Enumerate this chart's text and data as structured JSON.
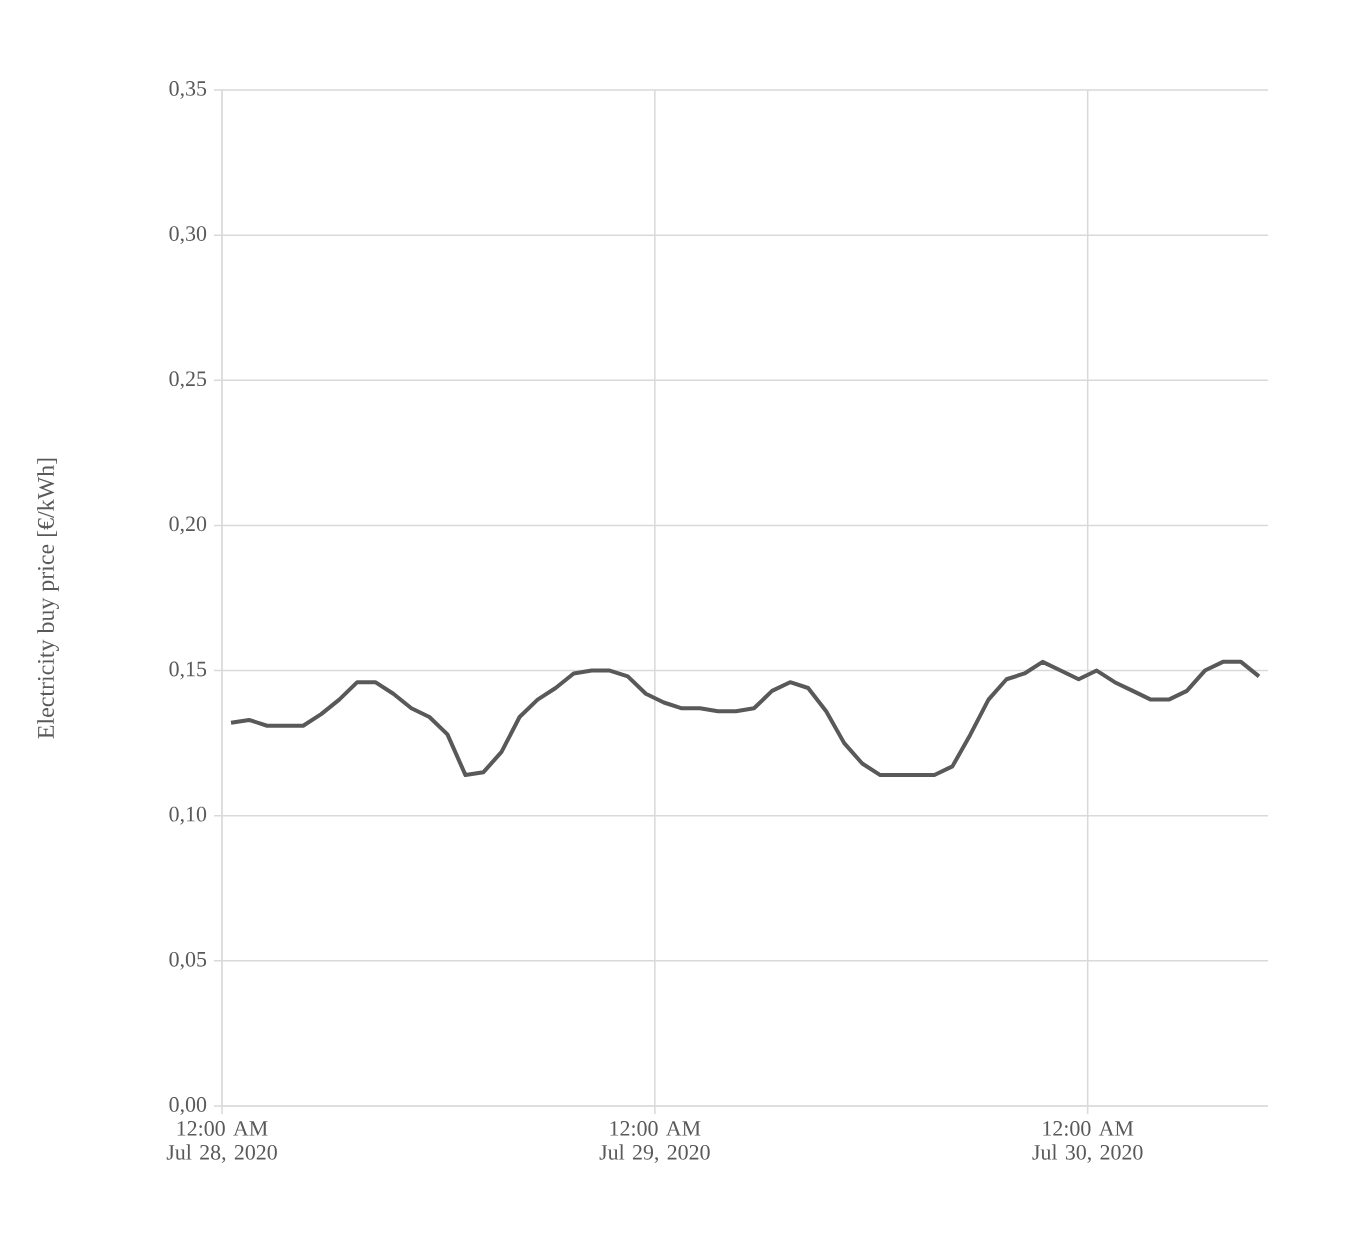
{
  "chart_data": {
    "type": "line",
    "ylabel": "Electricity buy price [€/kWh]",
    "x": [
      "2020-07-28T00:30",
      "2020-07-28T01:30",
      "2020-07-28T02:30",
      "2020-07-28T03:30",
      "2020-07-28T04:30",
      "2020-07-28T05:30",
      "2020-07-28T06:30",
      "2020-07-28T07:30",
      "2020-07-28T08:30",
      "2020-07-28T09:30",
      "2020-07-28T10:30",
      "2020-07-28T11:30",
      "2020-07-28T12:30",
      "2020-07-28T13:30",
      "2020-07-28T14:30",
      "2020-07-28T15:30",
      "2020-07-28T16:30",
      "2020-07-28T17:30",
      "2020-07-28T18:30",
      "2020-07-28T19:30",
      "2020-07-28T20:30",
      "2020-07-28T21:30",
      "2020-07-28T22:30",
      "2020-07-28T23:30",
      "2020-07-29T00:30",
      "2020-07-29T01:30",
      "2020-07-29T02:30",
      "2020-07-29T03:30",
      "2020-07-29T04:30",
      "2020-07-29T05:30",
      "2020-07-29T06:30",
      "2020-07-29T07:30",
      "2020-07-29T08:30",
      "2020-07-29T09:30",
      "2020-07-29T10:30",
      "2020-07-29T11:30",
      "2020-07-29T12:30",
      "2020-07-29T13:30",
      "2020-07-29T14:30",
      "2020-07-29T15:30",
      "2020-07-29T16:30",
      "2020-07-29T17:30",
      "2020-07-29T18:30",
      "2020-07-29T19:30",
      "2020-07-29T20:30",
      "2020-07-29T21:30",
      "2020-07-29T22:30",
      "2020-07-29T23:30",
      "2020-07-30T00:30",
      "2020-07-30T01:30",
      "2020-07-30T02:30",
      "2020-07-30T03:30",
      "2020-07-30T04:30",
      "2020-07-30T05:30",
      "2020-07-30T06:30",
      "2020-07-30T07:30",
      "2020-07-30T08:30",
      "2020-07-30T09:30"
    ],
    "series": [
      {
        "color": "#595959",
        "values": [
          0.132,
          0.133,
          0.131,
          0.131,
          0.131,
          0.135,
          0.14,
          0.146,
          0.146,
          0.142,
          0.137,
          0.134,
          0.128,
          0.114,
          0.115,
          0.122,
          0.134,
          0.14,
          0.144,
          0.149,
          0.15,
          0.15,
          0.148,
          0.142,
          0.139,
          0.137,
          0.137,
          0.136,
          0.136,
          0.137,
          0.143,
          0.146,
          0.144,
          0.136,
          0.125,
          0.118,
          0.114,
          0.114,
          0.114,
          0.114,
          0.117,
          0.128,
          0.14,
          0.147,
          0.149,
          0.153,
          0.15,
          0.147,
          0.15,
          0.146,
          0.143,
          0.14,
          0.14,
          0.143,
          0.15,
          0.153,
          0.153,
          0.148
        ]
      }
    ],
    "xlim": [
      "2020-07-28T00:00",
      "2020-07-30T10:00"
    ],
    "xticks": [
      {
        "value": "2020-07-28T00:00",
        "label": "12:00 AM Jul 28, 2020"
      },
      {
        "value": "2020-07-29T00:00",
        "label": "12:00 AM Jul 29, 2020"
      },
      {
        "value": "2020-07-30T00:00",
        "label": "12:00 AM Jul 30, 2020"
      }
    ],
    "ylim": [
      0,
      0.35
    ],
    "yticks": [
      {
        "value": 0,
        "label": "0,00"
      },
      {
        "value": 0.05,
        "label": "0,05"
      },
      {
        "value": 0.1,
        "label": "0,10"
      },
      {
        "value": 0.15,
        "label": "0,15"
      },
      {
        "value": 0.2,
        "label": "0,20"
      },
      {
        "value": 0.25,
        "label": "0,25"
      },
      {
        "value": 0.3,
        "label": "0,30"
      },
      {
        "value": 0.35,
        "label": "0,35"
      }
    ],
    "grid": true,
    "marker": "none",
    "line_style": "solid"
  }
}
